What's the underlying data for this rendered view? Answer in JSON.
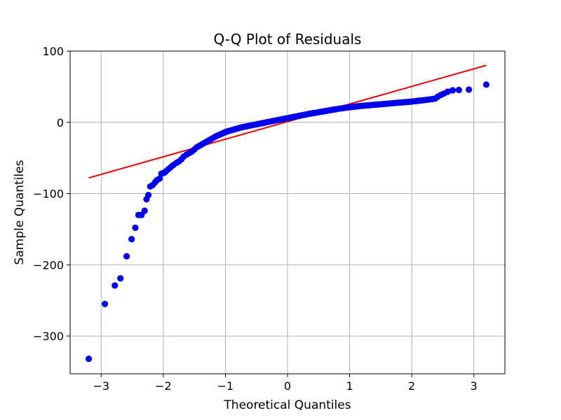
{
  "chart_data": {
    "type": "scatter",
    "title": "Q-Q Plot of Residuals",
    "xlabel": "Theoretical Quantiles",
    "ylabel": "Sample Quantiles",
    "xlim": [
      -3.5,
      3.5
    ],
    "ylim": [
      -353,
      100
    ],
    "xticks": [
      -3,
      -2,
      -1,
      0,
      1,
      2,
      3
    ],
    "xtick_labels": [
      "−3",
      "−2",
      "−1",
      "0",
      "1",
      "2",
      "3"
    ],
    "yticks": [
      100,
      0,
      -100,
      -200,
      -300
    ],
    "ytick_labels": [
      "100",
      "0",
      "−100",
      "−200",
      "−300"
    ],
    "grid": true,
    "colors": {
      "points": "#0000ee",
      "line": "#ee0000",
      "grid": "#b0b0b0"
    },
    "reference_line": {
      "x": [
        -3.2,
        3.2
      ],
      "y": [
        -78,
        80
      ]
    },
    "points": [
      [
        -3.2,
        -332
      ],
      [
        -2.94,
        -255
      ],
      [
        -2.78,
        -229
      ],
      [
        -2.69,
        -219
      ],
      [
        -2.59,
        -188
      ],
      [
        -2.51,
        -164
      ],
      [
        -2.45,
        -148
      ],
      [
        -2.4,
        -130
      ],
      [
        -2.35,
        -130
      ],
      [
        -2.3,
        -124
      ],
      [
        -2.27,
        -108
      ],
      [
        -2.24,
        -102
      ],
      [
        -2.21,
        -90
      ],
      [
        -2.17,
        -88
      ],
      [
        -2.13,
        -84
      ],
      [
        -2.1,
        -81
      ],
      [
        -2.06,
        -79
      ],
      [
        -2.03,
        -72
      ],
      [
        -1.99,
        -71
      ],
      [
        -1.96,
        -69
      ],
      [
        -1.92,
        -66
      ],
      [
        -1.88,
        -63
      ],
      [
        -1.84,
        -60
      ],
      [
        -1.79,
        -57
      ],
      [
        -1.75,
        -55
      ],
      [
        -1.71,
        -52
      ],
      [
        -1.67,
        -48
      ],
      [
        -1.62,
        -45
      ],
      [
        -1.58,
        -43
      ],
      [
        -1.54,
        -41
      ],
      [
        -1.5,
        -38
      ],
      [
        -1.46,
        -35
      ],
      [
        -1.42,
        -33
      ],
      [
        -1.38,
        -31
      ],
      [
        -1.34,
        -29
      ],
      [
        -1.3,
        -27
      ],
      [
        -1.26,
        -25
      ],
      [
        -1.22,
        -23
      ],
      [
        -1.18,
        -21
      ],
      [
        -1.14,
        -19
      ],
      [
        -1.1,
        -17.5
      ],
      [
        -1.06,
        -16
      ],
      [
        -1.02,
        -14.5
      ],
      [
        -0.98,
        -13
      ],
      [
        -0.94,
        -12
      ],
      [
        -0.9,
        -11
      ],
      [
        -0.86,
        -10
      ],
      [
        -0.82,
        -9
      ],
      [
        -0.78,
        -8
      ],
      [
        -0.74,
        -7
      ],
      [
        -0.7,
        -6.3
      ],
      [
        -0.66,
        -5.6
      ],
      [
        -0.62,
        -4.9
      ],
      [
        -0.58,
        -4.2
      ],
      [
        -0.54,
        -3.5
      ],
      [
        -0.5,
        -2.8
      ],
      [
        -0.46,
        -2.1
      ],
      [
        -0.42,
        -1.4
      ],
      [
        -0.38,
        -0.7
      ],
      [
        -0.34,
        0
      ],
      [
        -0.3,
        0.7
      ],
      [
        -0.26,
        1.4
      ],
      [
        -0.22,
        2.1
      ],
      [
        -0.18,
        2.8
      ],
      [
        -0.14,
        3.5
      ],
      [
        -0.1,
        4.2
      ],
      [
        -0.06,
        4.9
      ],
      [
        -0.02,
        5.6
      ],
      [
        0.02,
        6.2
      ],
      [
        0.06,
        6.9
      ],
      [
        0.1,
        7.6
      ],
      [
        0.14,
        8.3
      ],
      [
        0.18,
        9
      ],
      [
        0.22,
        9.7
      ],
      [
        0.26,
        10.4
      ],
      [
        0.3,
        11.1
      ],
      [
        0.34,
        11.8
      ],
      [
        0.38,
        12.4
      ],
      [
        0.42,
        13
      ],
      [
        0.46,
        13.6
      ],
      [
        0.5,
        14.2
      ],
      [
        0.54,
        14.8
      ],
      [
        0.58,
        15.4
      ],
      [
        0.62,
        16
      ],
      [
        0.66,
        16.6
      ],
      [
        0.7,
        17.2
      ],
      [
        0.74,
        17.8
      ],
      [
        0.78,
        18.4
      ],
      [
        0.82,
        19
      ],
      [
        0.86,
        19.5
      ],
      [
        0.9,
        20
      ],
      [
        0.94,
        20.5
      ],
      [
        0.98,
        21
      ],
      [
        1.02,
        21.4
      ],
      [
        1.06,
        21.8
      ],
      [
        1.1,
        22.2
      ],
      [
        1.14,
        22.6
      ],
      [
        1.18,
        23
      ],
      [
        1.22,
        23.3
      ],
      [
        1.26,
        23.6
      ],
      [
        1.3,
        23.9
      ],
      [
        1.34,
        24.2
      ],
      [
        1.38,
        24.5
      ],
      [
        1.42,
        24.8
      ],
      [
        1.46,
        25.1
      ],
      [
        1.5,
        25.4
      ],
      [
        1.54,
        25.7
      ],
      [
        1.58,
        26
      ],
      [
        1.62,
        26.3
      ],
      [
        1.66,
        26.6
      ],
      [
        1.7,
        26.9
      ],
      [
        1.74,
        27.2
      ],
      [
        1.78,
        27.5
      ],
      [
        1.82,
        27.8
      ],
      [
        1.86,
        28.1
      ],
      [
        1.9,
        28.4
      ],
      [
        1.94,
        28.7
      ],
      [
        1.98,
        29
      ],
      [
        2.02,
        29.4
      ],
      [
        2.06,
        29.8
      ],
      [
        2.1,
        30.2
      ],
      [
        2.14,
        30.6
      ],
      [
        2.18,
        31
      ],
      [
        2.22,
        31.4
      ],
      [
        2.26,
        31.8
      ],
      [
        2.3,
        32.3
      ],
      [
        2.34,
        32.8
      ],
      [
        2.38,
        33.5
      ],
      [
        2.42,
        36
      ],
      [
        2.47,
        38.5
      ],
      [
        2.52,
        40.5
      ],
      [
        2.58,
        43
      ],
      [
        2.66,
        45
      ],
      [
        2.76,
        45.5
      ],
      [
        2.92,
        46
      ],
      [
        3.2,
        53
      ]
    ]
  }
}
